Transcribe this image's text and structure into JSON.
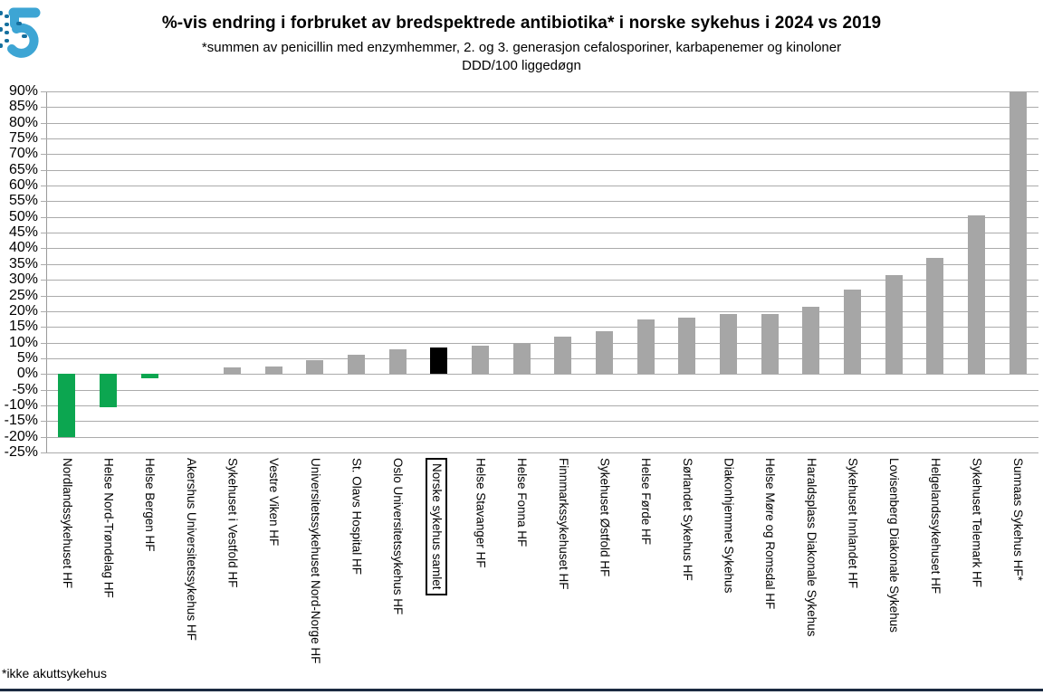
{
  "header": {
    "title": "%-vis endring i forbruket av bredspektrede antibiotika* i norske sykehus i 2024 vs 2019",
    "subtitle": "*summen av penicillin med enzymhemmer, 2. og 3. generasjon cefalosporiner, karbapenemer og kinoloner",
    "unit_line": "DDD/100 liggedøgn"
  },
  "footnote": "*ikke akuttsykehus",
  "colors": {
    "decrease_green": "#0ca650",
    "neutral_gray": "#a6a6a6",
    "highlight_black": "#000000",
    "gridline_gray": "#ababab",
    "bottom_rule_navy": "#1b2a41",
    "logo_light_blue": "#3da5d4",
    "logo_dark_blue": "#156f9e"
  },
  "chart_data": {
    "type": "bar",
    "title": "%-vis endring i forbruket av bredspektrede antibiotika* i norske sykehus i 2024 vs 2019",
    "subtitle": "*summen av penicillin med enzymhemmer, 2. og 3. generasjon cefalosporiner, karbapenemer og kinoloner",
    "unit": "DDD/100 liggedøgn",
    "xlabel": "",
    "ylabel": "",
    "ylim": [
      -25,
      90
    ],
    "ytick_step": 5,
    "grid": true,
    "legend": "none",
    "yticks": [
      "90%",
      "85%",
      "80%",
      "75%",
      "70%",
      "65%",
      "60%",
      "55%",
      "50%",
      "45%",
      "40%",
      "35%",
      "30%",
      "25%",
      "20%",
      "15%",
      "10%",
      "5%",
      "0%",
      "-5%",
      "-10%",
      "-15%",
      "-20%",
      "-25%"
    ],
    "categories": [
      "Nordlandssykehuset HF",
      "Helse Nord-Trøndelag HF",
      "Helse Bergen HF",
      "Akershus Universitetssykehus HF",
      "Sykehuset i Vestfold HF",
      "Vestre Viken HF",
      "Universitetssykehuset Nord-Norge HF",
      "St. Olavs Hospital HF",
      "Oslo Universitetssykehus HF",
      "Norske sykehus samlet",
      "Helse Stavanger HF",
      "Helse Fonna HF",
      "Finnmarkssykehuset HF",
      "Sykehuset Østfold HF",
      "Helse Førde HF",
      "Sørlandet Sykehus HF",
      "Diakonhjemmet Sykehus",
      "Helse Møre og Romsdal HF",
      "Haraldsplass Diakonale Sykehus",
      "Sykehuset Innlandet HF",
      "Lovisenberg Diakonale Sykehus",
      "Helgelandssykehuset HF",
      "Sykehuset Telemark HF",
      "Sunnaas Sykehus HF*"
    ],
    "values": [
      -20,
      -10.5,
      -1.5,
      0,
      2,
      2.5,
      4.5,
      6,
      8,
      8.5,
      9,
      10,
      12,
      13.5,
      17.5,
      18,
      19,
      19,
      21.5,
      27,
      31.5,
      37,
      50.5,
      90
    ],
    "bar_colors": [
      "#0ca650",
      "#0ca650",
      "#0ca650",
      "#a6a6a6",
      "#a6a6a6",
      "#a6a6a6",
      "#a6a6a6",
      "#a6a6a6",
      "#a6a6a6",
      "#000000",
      "#a6a6a6",
      "#a6a6a6",
      "#a6a6a6",
      "#a6a6a6",
      "#a6a6a6",
      "#a6a6a6",
      "#a6a6a6",
      "#a6a6a6",
      "#a6a6a6",
      "#a6a6a6",
      "#a6a6a6",
      "#a6a6a6",
      "#a6a6a6",
      "#a6a6a6"
    ],
    "highlight_index": 9,
    "highlight_category": "Norske sykehus samlet"
  }
}
